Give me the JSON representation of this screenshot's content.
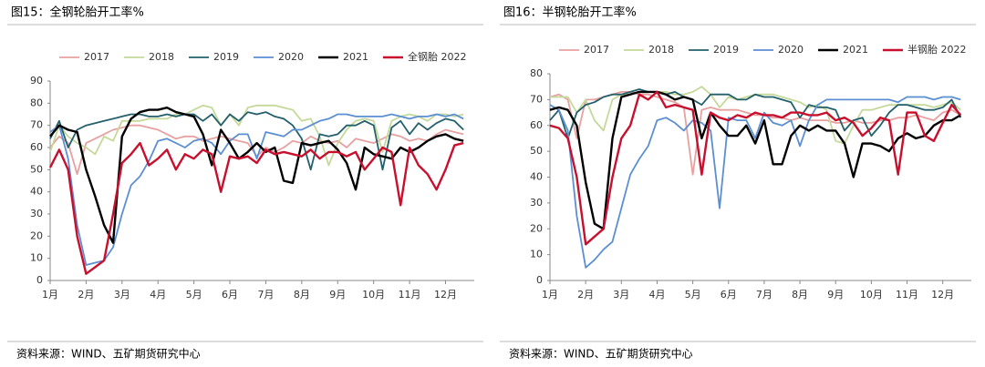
{
  "chart_data": [
    {
      "type": "line",
      "title": "图15：全钢轮胎开工率%",
      "source": "资料来源：WIND、五矿期货研究中心",
      "x": [
        1,
        1.25,
        1.5,
        1.75,
        2,
        2.25,
        2.5,
        2.75,
        3,
        3.25,
        3.5,
        3.75,
        4,
        4.25,
        4.5,
        4.75,
        5,
        5.25,
        5.5,
        5.75,
        6,
        6.25,
        6.5,
        6.75,
        7,
        7.25,
        7.5,
        7.75,
        8,
        8.25,
        8.5,
        8.75,
        9,
        9.25,
        9.5,
        9.75,
        10,
        10.25,
        10.5,
        10.75,
        11,
        11.25,
        11.5,
        11.75,
        12,
        12.25,
        12.5
      ],
      "xlim": [
        1,
        12.8
      ],
      "xticks": [
        {
          "value": 1,
          "label": "1月"
        },
        {
          "value": 2,
          "label": "2月"
        },
        {
          "value": 3,
          "label": "3月"
        },
        {
          "value": 4,
          "label": "4月"
        },
        {
          "value": 5,
          "label": "5月"
        },
        {
          "value": 6,
          "label": "6月"
        },
        {
          "value": 7,
          "label": "7月"
        },
        {
          "value": 8,
          "label": "8月"
        },
        {
          "value": 9,
          "label": "9月"
        },
        {
          "value": 10,
          "label": "10月"
        },
        {
          "value": 11,
          "label": "11月"
        },
        {
          "value": 12,
          "label": "12月"
        }
      ],
      "ylim": [
        0,
        90
      ],
      "yticks": [
        0,
        10,
        20,
        30,
        40,
        50,
        60,
        70,
        80,
        90
      ],
      "series": [
        {
          "name": "2017",
          "color": "#e8a0a0",
          "values": [
            60,
            65,
            62,
            48,
            62,
            64,
            66,
            68,
            69,
            70,
            70,
            69,
            68,
            66,
            64,
            65,
            65,
            63,
            64,
            65,
            64,
            63,
            62,
            56,
            60,
            58,
            60,
            63,
            62,
            65,
            63,
            62,
            63,
            60,
            64,
            63,
            62,
            64,
            66,
            65,
            63,
            64,
            63,
            66,
            68,
            67,
            66
          ]
        },
        {
          "name": "2018",
          "color": "#c5d99a",
          "values": [
            58,
            70,
            65,
            62,
            60,
            57,
            65,
            63,
            72,
            72,
            72,
            73,
            73,
            73,
            75,
            75,
            77,
            79,
            78,
            70,
            75,
            70,
            78,
            79,
            79,
            79,
            78,
            77,
            72,
            73,
            65,
            52,
            62,
            68,
            72,
            73,
            72,
            58,
            72,
            74,
            75,
            74,
            72,
            75,
            75,
            74,
            75
          ]
        },
        {
          "name": "2019",
          "color": "#23606b",
          "values": [
            64,
            72,
            60,
            68,
            70,
            71,
            72,
            73,
            74,
            75,
            75,
            74,
            74,
            75,
            74,
            75,
            75,
            72,
            75,
            70,
            75,
            72,
            76,
            75,
            76,
            74,
            73,
            70,
            64,
            50,
            66,
            65,
            66,
            70,
            70,
            72,
            70,
            50,
            69,
            72,
            66,
            71,
            68,
            71,
            73,
            72,
            68
          ]
        },
        {
          "name": "2020",
          "color": "#5b8fd2",
          "values": [
            67,
            70,
            55,
            25,
            7,
            8,
            9,
            15,
            30,
            43,
            47,
            54,
            63,
            64,
            62,
            60,
            63,
            64,
            62,
            57,
            63,
            66,
            66,
            55,
            67,
            66,
            65,
            68,
            68,
            70,
            72,
            73,
            75,
            75,
            74,
            74,
            74,
            74,
            75,
            74,
            73,
            74,
            74,
            75,
            74,
            75,
            73
          ]
        },
        {
          "name": "2021",
          "color": "#000000",
          "values": [
            65,
            70,
            68,
            67,
            50,
            38,
            25,
            17,
            65,
            73,
            76,
            77,
            77,
            78,
            76,
            75,
            74,
            66,
            52,
            68,
            62,
            55,
            58,
            62,
            58,
            60,
            45,
            44,
            62,
            61,
            62,
            63,
            59,
            53,
            41,
            60,
            57,
            56,
            55,
            60,
            58,
            60,
            63,
            65,
            66,
            64,
            63
          ]
        },
        {
          "name": "全钢胎 2022",
          "color": "#c8102e",
          "values": [
            51,
            59,
            50,
            20,
            3,
            6,
            9,
            30,
            53,
            57,
            62,
            52,
            55,
            59,
            50,
            57,
            55,
            59,
            57,
            40,
            56,
            55,
            56,
            53,
            59,
            57,
            58,
            57,
            56,
            59,
            55,
            58,
            58,
            56,
            58,
            50,
            55,
            60,
            58,
            34,
            60,
            52,
            48,
            41,
            50,
            61,
            62
          ]
        }
      ]
    },
    {
      "type": "line",
      "title": "图16：半钢轮胎开工率%",
      "source": "资料来源：WIND、五矿期货研究中心",
      "x": [
        1,
        1.25,
        1.5,
        1.75,
        2,
        2.25,
        2.5,
        2.75,
        3,
        3.25,
        3.5,
        3.75,
        4,
        4.25,
        4.5,
        4.75,
        5,
        5.25,
        5.5,
        5.75,
        6,
        6.25,
        6.5,
        6.75,
        7,
        7.25,
        7.5,
        7.75,
        8,
        8.25,
        8.5,
        8.75,
        9,
        9.25,
        9.5,
        9.75,
        10,
        10.25,
        10.5,
        10.75,
        11,
        11.25,
        11.5,
        11.75,
        12,
        12.25,
        12.5
      ],
      "xlim": [
        1,
        12.8
      ],
      "xticks": [
        {
          "value": 1,
          "label": "1月"
        },
        {
          "value": 2,
          "label": "2月"
        },
        {
          "value": 3,
          "label": "3月"
        },
        {
          "value": 4,
          "label": "4月"
        },
        {
          "value": 5,
          "label": "5月"
        },
        {
          "value": 6,
          "label": "6月"
        },
        {
          "value": 7,
          "label": "7月"
        },
        {
          "value": 8,
          "label": "8月"
        },
        {
          "value": 9,
          "label": "9月"
        },
        {
          "value": 10,
          "label": "10月"
        },
        {
          "value": 11,
          "label": "11月"
        },
        {
          "value": 12,
          "label": "12月"
        }
      ],
      "ylim": [
        0,
        80
      ],
      "yticks": [
        0,
        10,
        20,
        30,
        40,
        50,
        60,
        70,
        80
      ],
      "series": [
        {
          "name": "2017",
          "color": "#e8a0a0",
          "values": [
            71,
            72,
            70,
            55,
            70,
            70,
            71,
            72,
            73,
            73,
            72,
            72,
            71,
            70,
            69,
            67,
            41,
            66,
            67,
            66,
            66,
            66,
            65,
            64,
            64,
            63,
            63,
            62,
            63,
            62,
            62,
            62,
            61,
            61,
            62,
            61,
            61,
            62,
            62,
            63,
            63,
            64,
            63,
            62,
            65,
            66,
            64
          ]
        },
        {
          "name": "2018",
          "color": "#c5d99a",
          "values": [
            71,
            71,
            71,
            65,
            70,
            62,
            58,
            70,
            72,
            72,
            73,
            73,
            73,
            73,
            72,
            72,
            73,
            75,
            72,
            67,
            71,
            70,
            71,
            72,
            72,
            72,
            71,
            70,
            69,
            67,
            68,
            66,
            54,
            53,
            60,
            66,
            66,
            67,
            68,
            68,
            68,
            68,
            68,
            67,
            68,
            69,
            66
          ]
        },
        {
          "name": "2019",
          "color": "#23606b",
          "values": [
            62,
            66,
            55,
            65,
            68,
            69,
            71,
            72,
            72,
            73,
            74,
            73,
            73,
            72,
            73,
            71,
            70,
            68,
            72,
            72,
            72,
            70,
            70,
            72,
            71,
            71,
            70,
            69,
            63,
            68,
            67,
            67,
            66,
            58,
            62,
            63,
            56,
            60,
            65,
            68,
            68,
            67,
            66,
            66,
            67,
            70,
            63
          ]
        },
        {
          "name": "2020",
          "color": "#5b8fd2",
          "values": [
            68,
            66,
            58,
            25,
            5,
            8,
            12,
            15,
            28,
            41,
            47,
            52,
            62,
            63,
            61,
            58,
            62,
            61,
            58,
            28,
            63,
            62,
            62,
            55,
            65,
            61,
            60,
            62,
            52,
            62,
            68,
            70,
            70,
            70,
            70,
            70,
            70,
            70,
            70,
            69,
            71,
            71,
            71,
            70,
            71,
            71,
            70
          ]
        },
        {
          "name": "2021",
          "color": "#000000",
          "values": [
            66,
            67,
            66,
            60,
            38,
            22,
            20,
            55,
            71,
            72,
            73,
            73,
            73,
            72,
            70,
            71,
            70,
            55,
            65,
            60,
            56,
            56,
            60,
            53,
            62,
            45,
            45,
            56,
            60,
            58,
            60,
            58,
            58,
            53,
            40,
            53,
            53,
            52,
            50,
            55,
            57,
            55,
            56,
            60,
            62,
            62,
            64
          ]
        },
        {
          "name": "半钢胎 2022",
          "color": "#c8102e",
          "values": [
            60,
            59,
            55,
            40,
            14,
            17,
            20,
            40,
            55,
            60,
            72,
            70,
            73,
            67,
            68,
            67,
            66,
            41,
            65,
            63,
            62,
            64,
            63,
            65,
            64,
            64,
            63,
            65,
            65,
            64,
            64,
            65,
            62,
            63,
            61,
            56,
            59,
            63,
            62,
            41,
            65,
            65,
            56,
            54,
            61,
            68,
            64
          ]
        }
      ]
    }
  ]
}
